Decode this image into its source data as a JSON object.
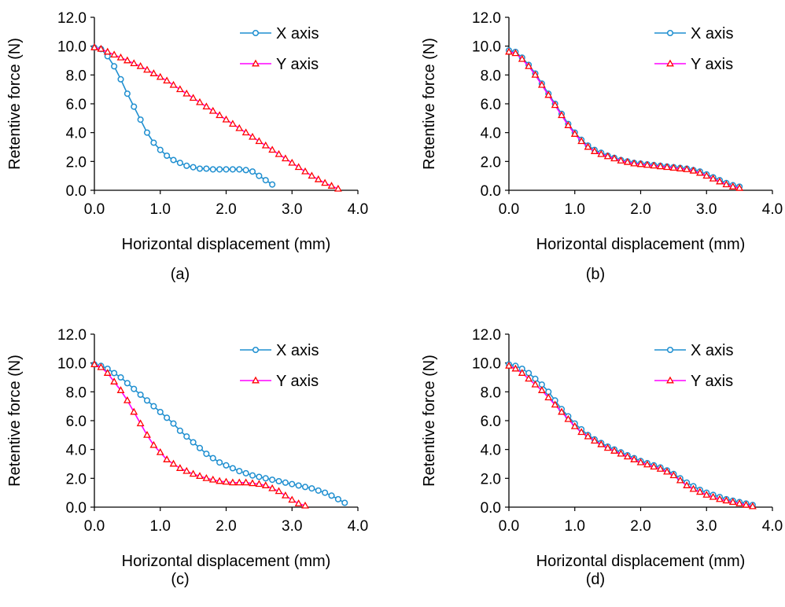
{
  "colors": {
    "x_series": "#1f8fd0",
    "y_series_line": "#ff00ff",
    "y_series_marker": "#ff0000"
  },
  "chart_data": [
    {
      "type": "line",
      "panel": "(a)",
      "xlabel": "Horizontal displacement (mm)",
      "ylabel": "Retentive force (N)",
      "xlim": [
        0,
        4
      ],
      "ylim": [
        0,
        12
      ],
      "xticks": [
        "0.0",
        "1.0",
        "2.0",
        "3.0",
        "4.0"
      ],
      "yticks": [
        "0.0",
        "2.0",
        "4.0",
        "6.0",
        "8.0",
        "10.0",
        "12.0"
      ],
      "legend": "top-right",
      "series": [
        {
          "name": "X axis",
          "marker": "circle",
          "x": [
            0.0,
            0.1,
            0.2,
            0.3,
            0.4,
            0.5,
            0.6,
            0.7,
            0.8,
            0.9,
            1.0,
            1.1,
            1.2,
            1.3,
            1.4,
            1.5,
            1.6,
            1.7,
            1.8,
            1.9,
            2.0,
            2.1,
            2.2,
            2.3,
            2.4,
            2.5,
            2.6,
            2.7
          ],
          "y": [
            9.9,
            9.8,
            9.3,
            8.6,
            7.7,
            6.7,
            5.8,
            4.9,
            4.0,
            3.3,
            2.8,
            2.4,
            2.1,
            1.9,
            1.7,
            1.6,
            1.5,
            1.5,
            1.45,
            1.45,
            1.45,
            1.45,
            1.45,
            1.4,
            1.3,
            1.0,
            0.7,
            0.4
          ]
        },
        {
          "name": "Y axis",
          "marker": "triangle",
          "x": [
            0.0,
            0.1,
            0.2,
            0.3,
            0.4,
            0.5,
            0.6,
            0.7,
            0.8,
            0.9,
            1.0,
            1.1,
            1.2,
            1.3,
            1.4,
            1.5,
            1.6,
            1.7,
            1.8,
            1.9,
            2.0,
            2.1,
            2.2,
            2.3,
            2.4,
            2.5,
            2.6,
            2.7,
            2.8,
            2.9,
            3.0,
            3.1,
            3.2,
            3.3,
            3.4,
            3.5,
            3.6,
            3.7
          ],
          "y": [
            9.9,
            9.8,
            9.6,
            9.4,
            9.2,
            9.0,
            8.8,
            8.6,
            8.35,
            8.1,
            7.85,
            7.6,
            7.3,
            7.0,
            6.7,
            6.4,
            6.1,
            5.8,
            5.5,
            5.2,
            4.9,
            4.6,
            4.3,
            4.0,
            3.7,
            3.4,
            3.1,
            2.8,
            2.5,
            2.2,
            1.9,
            1.6,
            1.3,
            1.0,
            0.75,
            0.5,
            0.3,
            0.1
          ]
        }
      ]
    },
    {
      "type": "line",
      "panel": "(b)",
      "xlabel": "Horizontal displacement (mm)",
      "ylabel": "Retentive force (N)",
      "xlim": [
        0,
        4
      ],
      "ylim": [
        0,
        12
      ],
      "xticks": [
        "0.0",
        "1.0",
        "2.0",
        "3.0",
        "4.0"
      ],
      "yticks": [
        "0.0",
        "2.0",
        "4.0",
        "6.0",
        "8.0",
        "10.0",
        "12.0"
      ],
      "legend": "top-right",
      "series": [
        {
          "name": "X axis",
          "marker": "circle",
          "x": [
            0.0,
            0.1,
            0.2,
            0.3,
            0.4,
            0.5,
            0.6,
            0.7,
            0.8,
            0.9,
            1.0,
            1.1,
            1.2,
            1.3,
            1.4,
            1.5,
            1.6,
            1.7,
            1.8,
            1.9,
            2.0,
            2.1,
            2.2,
            2.3,
            2.4,
            2.5,
            2.6,
            2.7,
            2.8,
            2.9,
            3.0,
            3.1,
            3.2,
            3.3,
            3.4,
            3.5
          ],
          "y": [
            9.7,
            9.6,
            9.2,
            8.7,
            8.1,
            7.4,
            6.7,
            6.0,
            5.3,
            4.6,
            4.0,
            3.5,
            3.1,
            2.8,
            2.6,
            2.4,
            2.25,
            2.1,
            2.0,
            1.9,
            1.85,
            1.8,
            1.75,
            1.7,
            1.65,
            1.6,
            1.55,
            1.5,
            1.4,
            1.3,
            1.1,
            0.9,
            0.7,
            0.5,
            0.35,
            0.25
          ]
        },
        {
          "name": "Y axis",
          "marker": "triangle",
          "x": [
            0.0,
            0.1,
            0.2,
            0.3,
            0.4,
            0.5,
            0.6,
            0.7,
            0.8,
            0.9,
            1.0,
            1.1,
            1.2,
            1.3,
            1.4,
            1.5,
            1.6,
            1.7,
            1.8,
            1.9,
            2.0,
            2.1,
            2.2,
            2.3,
            2.4,
            2.5,
            2.6,
            2.7,
            2.8,
            2.9,
            3.0,
            3.1,
            3.2,
            3.3,
            3.4,
            3.5
          ],
          "y": [
            9.6,
            9.5,
            9.1,
            8.6,
            8.0,
            7.3,
            6.6,
            5.9,
            5.2,
            4.5,
            3.9,
            3.4,
            3.0,
            2.7,
            2.5,
            2.35,
            2.2,
            2.05,
            1.95,
            1.85,
            1.8,
            1.75,
            1.7,
            1.65,
            1.6,
            1.55,
            1.5,
            1.45,
            1.35,
            1.2,
            1.0,
            0.8,
            0.6,
            0.4,
            0.25,
            0.15
          ]
        }
      ]
    },
    {
      "type": "line",
      "panel": "(c)",
      "xlabel": "Horizontal displacement (mm)",
      "ylabel": "Retentive force (N)",
      "xlim": [
        0,
        4
      ],
      "ylim": [
        0,
        12
      ],
      "xticks": [
        "0.0",
        "1.0",
        "2.0",
        "3.0",
        "4.0"
      ],
      "yticks": [
        "0.0",
        "2.0",
        "4.0",
        "6.0",
        "8.0",
        "10.0",
        "12.0"
      ],
      "legend": "top-right",
      "series": [
        {
          "name": "X axis",
          "marker": "circle",
          "x": [
            0.0,
            0.1,
            0.2,
            0.3,
            0.4,
            0.5,
            0.6,
            0.7,
            0.8,
            0.9,
            1.0,
            1.1,
            1.2,
            1.3,
            1.4,
            1.5,
            1.6,
            1.7,
            1.8,
            1.9,
            2.0,
            2.1,
            2.2,
            2.3,
            2.4,
            2.5,
            2.6,
            2.7,
            2.8,
            2.9,
            3.0,
            3.1,
            3.2,
            3.3,
            3.4,
            3.5,
            3.6,
            3.7,
            3.8
          ],
          "y": [
            9.9,
            9.8,
            9.6,
            9.3,
            9.0,
            8.6,
            8.2,
            7.8,
            7.4,
            7.0,
            6.6,
            6.2,
            5.8,
            5.3,
            4.9,
            4.5,
            4.1,
            3.7,
            3.4,
            3.1,
            2.9,
            2.7,
            2.5,
            2.35,
            2.2,
            2.1,
            2.0,
            1.9,
            1.8,
            1.7,
            1.6,
            1.5,
            1.4,
            1.3,
            1.15,
            1.0,
            0.8,
            0.55,
            0.3
          ]
        },
        {
          "name": "Y axis",
          "marker": "triangle",
          "x": [
            0.0,
            0.1,
            0.2,
            0.3,
            0.4,
            0.5,
            0.6,
            0.7,
            0.8,
            0.9,
            1.0,
            1.1,
            1.2,
            1.3,
            1.4,
            1.5,
            1.6,
            1.7,
            1.8,
            1.9,
            2.0,
            2.1,
            2.2,
            2.3,
            2.4,
            2.5,
            2.6,
            2.7,
            2.8,
            2.9,
            3.0,
            3.1,
            3.2
          ],
          "y": [
            9.9,
            9.7,
            9.3,
            8.7,
            8.1,
            7.4,
            6.6,
            5.8,
            5.0,
            4.3,
            3.8,
            3.3,
            3.0,
            2.7,
            2.5,
            2.3,
            2.15,
            2.0,
            1.9,
            1.8,
            1.75,
            1.7,
            1.7,
            1.7,
            1.65,
            1.6,
            1.5,
            1.3,
            1.1,
            0.8,
            0.5,
            0.25,
            0.1
          ]
        }
      ]
    },
    {
      "type": "line",
      "panel": "(d)",
      "xlabel": "Horizontal displacement (mm)",
      "ylabel": "Retentive force (N)",
      "xlim": [
        0,
        4
      ],
      "ylim": [
        0,
        12
      ],
      "xticks": [
        "0.0",
        "1.0",
        "2.0",
        "3.0",
        "4.0"
      ],
      "yticks": [
        "0.0",
        "2.0",
        "4.0",
        "6.0",
        "8.0",
        "10.0",
        "12.0"
      ],
      "legend": "top-right",
      "series": [
        {
          "name": "X axis",
          "marker": "circle",
          "x": [
            0.0,
            0.1,
            0.2,
            0.3,
            0.4,
            0.5,
            0.6,
            0.7,
            0.8,
            0.9,
            1.0,
            1.1,
            1.2,
            1.3,
            1.4,
            1.5,
            1.6,
            1.7,
            1.8,
            1.9,
            2.0,
            2.1,
            2.2,
            2.3,
            2.4,
            2.5,
            2.6,
            2.7,
            2.8,
            2.9,
            3.0,
            3.1,
            3.2,
            3.3,
            3.4,
            3.5,
            3.6,
            3.7
          ],
          "y": [
            9.9,
            9.8,
            9.6,
            9.3,
            8.9,
            8.5,
            8.0,
            7.4,
            6.8,
            6.3,
            5.8,
            5.4,
            5.0,
            4.7,
            4.45,
            4.2,
            4.0,
            3.8,
            3.6,
            3.4,
            3.2,
            3.05,
            2.9,
            2.75,
            2.55,
            2.3,
            2.0,
            1.7,
            1.45,
            1.2,
            1.0,
            0.85,
            0.7,
            0.55,
            0.45,
            0.35,
            0.25,
            0.15
          ]
        },
        {
          "name": "Y axis",
          "marker": "triangle",
          "x": [
            0.0,
            0.1,
            0.2,
            0.3,
            0.4,
            0.5,
            0.6,
            0.7,
            0.8,
            0.9,
            1.0,
            1.1,
            1.2,
            1.3,
            1.4,
            1.5,
            1.6,
            1.7,
            1.8,
            1.9,
            2.0,
            2.1,
            2.2,
            2.3,
            2.4,
            2.5,
            2.6,
            2.7,
            2.8,
            2.9,
            3.0,
            3.1,
            3.2,
            3.3,
            3.4,
            3.5,
            3.6,
            3.7
          ],
          "y": [
            9.8,
            9.6,
            9.3,
            8.9,
            8.5,
            8.1,
            7.6,
            7.1,
            6.6,
            6.1,
            5.6,
            5.2,
            4.9,
            4.6,
            4.35,
            4.1,
            3.9,
            3.7,
            3.5,
            3.3,
            3.1,
            2.95,
            2.8,
            2.65,
            2.45,
            2.2,
            1.85,
            1.5,
            1.25,
            1.05,
            0.85,
            0.7,
            0.55,
            0.45,
            0.35,
            0.25,
            0.15,
            0.05
          ]
        }
      ]
    }
  ]
}
